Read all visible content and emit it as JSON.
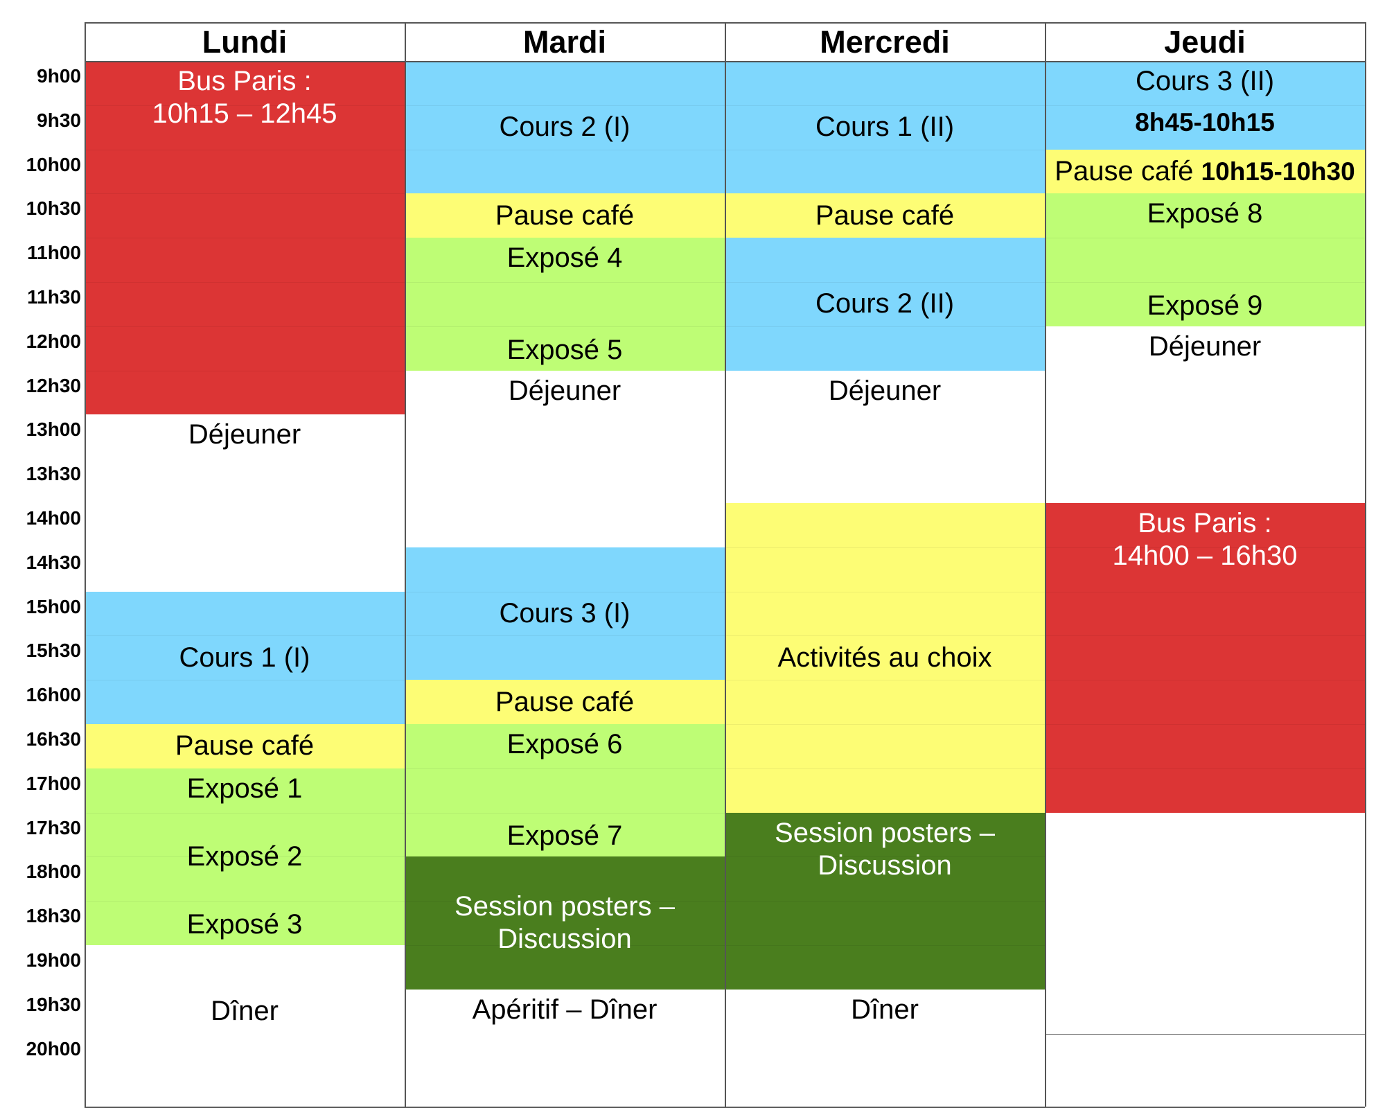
{
  "days": [
    "Lundi",
    "Mardi",
    "Mercredi",
    "Jeudi"
  ],
  "times": [
    "9h00",
    "9h30",
    "10h00",
    "10h30",
    "11h00",
    "11h30",
    "12h00",
    "12h30",
    "13h00",
    "13h30",
    "14h00",
    "14h30",
    "15h00",
    "15h30",
    "16h00",
    "16h30",
    "17h00",
    "17h30",
    "18h00",
    "18h30",
    "19h00",
    "19h30",
    "20h00"
  ],
  "colors": {
    "red": "#dc3535",
    "blue": "#7fd7fd",
    "yellow": "#fdfd75",
    "green": "#befd75",
    "darkgreen": "#4a7e1e",
    "white": "#ffffff"
  },
  "schedule": [
    [
      {
        "start": 0,
        "end": 8,
        "color": "red",
        "lines": [
          "Bus Paris :",
          "10h15 – 12h45"
        ],
        "valign": "top",
        "light": true
      },
      {
        "start": 8,
        "end": 12,
        "color": "white",
        "lines": [
          "Déjeuner"
        ],
        "valign": "top"
      },
      {
        "start": 12,
        "end": 15,
        "color": "blue",
        "lines": [
          "Cours 1 (I)"
        ],
        "valign": "middle"
      },
      {
        "start": 15,
        "end": 16,
        "color": "yellow",
        "lines": [
          "Pause café"
        ],
        "valign": "middle"
      },
      {
        "start": 16,
        "end": 20,
        "color": "green",
        "lines": [
          "Exposé 1",
          "Exposé 2",
          "Exposé 3"
        ],
        "valign": "spread"
      },
      {
        "start": 20,
        "end": 23,
        "color": "white",
        "lines": [
          "Dîner"
        ],
        "valign": "middle"
      }
    ],
    [
      {
        "start": 0,
        "end": 3,
        "color": "blue",
        "lines": [
          "Cours 2 (I)"
        ],
        "valign": "middle"
      },
      {
        "start": 3,
        "end": 4,
        "color": "yellow",
        "lines": [
          "Pause café"
        ],
        "valign": "middle"
      },
      {
        "start": 4,
        "end": 7,
        "color": "green",
        "lines": [
          "Exposé 4",
          "Exposé 5"
        ],
        "valign": "spread"
      },
      {
        "start": 7,
        "end": 11,
        "color": "white",
        "lines": [
          "Déjeuner"
        ],
        "valign": "top"
      },
      {
        "start": 11,
        "end": 14,
        "color": "blue",
        "lines": [
          "Cours 3 (I)"
        ],
        "valign": "middle"
      },
      {
        "start": 14,
        "end": 15,
        "color": "yellow",
        "lines": [
          "Pause café"
        ],
        "valign": "middle"
      },
      {
        "start": 15,
        "end": 18,
        "color": "green",
        "lines": [
          "Exposé 6",
          "Exposé 7"
        ],
        "valign": "spread"
      },
      {
        "start": 18,
        "end": 21,
        "color": "darkgreen",
        "lines": [
          "Session posters –",
          "Discussion"
        ],
        "valign": "middle",
        "light": true
      },
      {
        "start": 21,
        "end": 23,
        "color": "white",
        "lines": [
          "Apéritif – Dîner"
        ],
        "valign": "top"
      }
    ],
    [
      {
        "start": 0,
        "end": 3,
        "color": "blue",
        "lines": [
          "Cours 1 (II)"
        ],
        "valign": "middle"
      },
      {
        "start": 3,
        "end": 4,
        "color": "yellow",
        "lines": [
          "Pause café"
        ],
        "valign": "middle"
      },
      {
        "start": 4,
        "end": 7,
        "color": "blue",
        "lines": [
          "Cours 2 (II)"
        ],
        "valign": "middle"
      },
      {
        "start": 7,
        "end": 10,
        "color": "white",
        "lines": [
          "Déjeuner"
        ],
        "valign": "top"
      },
      {
        "start": 10,
        "end": 17,
        "color": "yellow",
        "lines": [
          "Activités au choix"
        ],
        "valign": "middle"
      },
      {
        "start": 17,
        "end": 21,
        "color": "darkgreen",
        "lines": [
          "Session posters –",
          "Discussion"
        ],
        "valign": "top",
        "light": true
      },
      {
        "start": 21,
        "end": 23,
        "color": "white",
        "lines": [
          "Dîner"
        ],
        "valign": "top"
      }
    ],
    [
      {
        "start": 0,
        "end": 2,
        "color": "blue",
        "lines": [
          "Cours 3 (II)"
        ],
        "sub": "8h45-10h15",
        "valign": "top"
      },
      {
        "start": 2,
        "end": 3,
        "color": "yellow",
        "lines": [
          "Pause café"
        ],
        "bold": "10h15-10h30",
        "valign": "middle"
      },
      {
        "start": 3,
        "end": 6,
        "color": "green",
        "lines": [
          "Exposé 8",
          "Exposé 9"
        ],
        "valign": "spread"
      },
      {
        "start": 6,
        "end": 10,
        "color": "white",
        "lines": [
          "Déjeuner"
        ],
        "valign": "top"
      },
      {
        "start": 10,
        "end": 17,
        "color": "red",
        "lines": [
          "Bus Paris :",
          "14h00 – 16h30"
        ],
        "valign": "top",
        "light": true
      },
      {
        "start": 17,
        "end": 22,
        "color": "white",
        "lines": [],
        "valign": "top"
      },
      {
        "start": 22,
        "end": 23,
        "color": "white",
        "lines": [],
        "valign": "top"
      }
    ]
  ]
}
